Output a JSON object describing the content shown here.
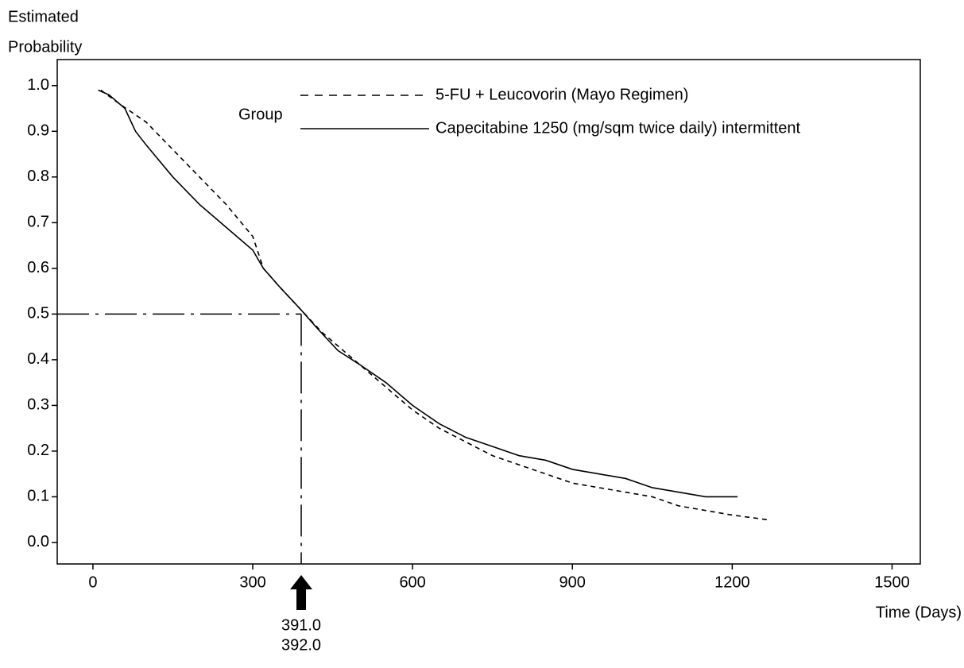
{
  "chart_data": {
    "type": "line",
    "ylabel": [
      "Estimated",
      "Probability"
    ],
    "xlabel": "Time (Days)",
    "legend_title": "Group",
    "xlim": [
      -67,
      1553
    ],
    "ylim": [
      -0.047,
      1.057
    ],
    "xticks": [
      0,
      300,
      600,
      900,
      1200,
      1500
    ],
    "yticks": [
      {
        "value": 0,
        "label": "0.0"
      },
      0.1,
      0.2,
      0.3,
      0.4,
      0.5,
      0.6,
      0.7,
      0.8,
      0.9,
      {
        "value": 1,
        "label": "1.0"
      }
    ],
    "series": [
      {
        "name": "5-FU + Leucovorin (Mayo Regimen)",
        "color": "#000000",
        "style": "dashed",
        "x": [
          15,
          50,
          100,
          150,
          200,
          250,
          300,
          320,
          350,
          390,
          430,
          460,
          500,
          550,
          600,
          650,
          700,
          750,
          800,
          850,
          900,
          950,
          1000,
          1050,
          1100,
          1150,
          1200,
          1265
        ],
        "values": [
          0.99,
          0.96,
          0.92,
          0.86,
          0.8,
          0.74,
          0.67,
          0.6,
          0.56,
          0.51,
          0.46,
          0.43,
          0.39,
          0.34,
          0.29,
          0.25,
          0.22,
          0.19,
          0.17,
          0.15,
          0.13,
          0.12,
          0.11,
          0.1,
          0.08,
          0.07,
          0.06,
          0.05
        ]
      },
      {
        "name": "Capecitabine 1250 (mg/sqm twice daily) intermittent",
        "color": "#000000",
        "style": "solid",
        "x": [
          10,
          30,
          60,
          80,
          100,
          150,
          200,
          250,
          300,
          320,
          350,
          390,
          420,
          460,
          500,
          550,
          600,
          650,
          700,
          750,
          800,
          850,
          900,
          950,
          1000,
          1050,
          1100,
          1150,
          1210
        ],
        "values": [
          0.99,
          0.98,
          0.95,
          0.9,
          0.87,
          0.8,
          0.74,
          0.69,
          0.64,
          0.6,
          0.56,
          0.51,
          0.47,
          0.42,
          0.39,
          0.35,
          0.3,
          0.26,
          0.23,
          0.21,
          0.19,
          0.18,
          0.16,
          0.15,
          0.14,
          0.12,
          0.11,
          0.1,
          0.1
        ]
      }
    ],
    "reference_y": 0.5,
    "annotations": [
      {
        "value": 391,
        "label": "391.0"
      },
      {
        "value": 392,
        "label": "392.0"
      }
    ]
  }
}
